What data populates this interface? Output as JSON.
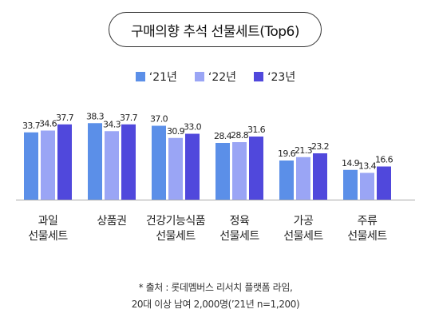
{
  "chart_data": {
    "type": "bar",
    "title": "구매의향 추석 선물세트(Top6)",
    "categories": [
      [
        "과일",
        "선물세트"
      ],
      [
        "상품권"
      ],
      [
        "건강기능식품",
        "선물세트"
      ],
      [
        "정육",
        "선물세트"
      ],
      [
        "가공",
        "선물세트"
      ],
      [
        "주류",
        "선물세트"
      ]
    ],
    "series": [
      {
        "name": "‘21년",
        "color": "#5b8fe8",
        "values": [
          33.7,
          38.3,
          37.0,
          28.4,
          19.6,
          14.9
        ],
        "labels": [
          "33.7",
          "38.3",
          "37.0",
          "28.4",
          "19.6",
          "14.9"
        ]
      },
      {
        "name": "‘22년",
        "color": "#9aa5f5",
        "values": [
          34.6,
          34.3,
          30.9,
          28.8,
          21.3,
          13.4
        ],
        "labels": [
          "34.6",
          "34.3",
          "30.9",
          "28.8",
          "21.3",
          "13.4"
        ]
      },
      {
        "name": "‘23년",
        "color": "#5048dc",
        "values": [
          37.7,
          37.7,
          33.0,
          31.6,
          23.2,
          16.6
        ],
        "labels": [
          "37.7",
          "37.7",
          "33.0",
          "31.6",
          "23.2",
          "16.6"
        ]
      }
    ],
    "ylim": [
      0,
      40
    ],
    "grid": false,
    "legend_position": "top-center"
  },
  "footnote": {
    "line1": "* 출처 : 롯데멤버스 리서치 플랫폼 라임,",
    "line2": "20대 이상 남여 2,000명(’21년 n=1,200)"
  },
  "colors": {
    "axis": "#aaaaaa"
  }
}
